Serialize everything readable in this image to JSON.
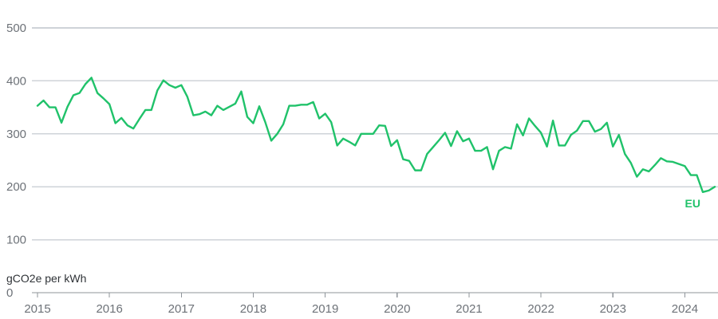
{
  "colors": {
    "series": "#20c26a",
    "grid": "#cfd3d8",
    "axis": "#8f949a",
    "tick_text": "#6d7278",
    "unit_text": "#2f3337"
  },
  "chart_data": {
    "type": "line",
    "ylabel": "gCO2e per kWh",
    "ylim": [
      0,
      500
    ],
    "y_ticks": [
      "0",
      "100",
      "200",
      "300",
      "400",
      "500"
    ],
    "x_ticks": [
      "2015",
      "2016",
      "2017",
      "2018",
      "2019",
      "2020",
      "2021",
      "2022",
      "2023",
      "2024"
    ],
    "xlim": [
      2015.0,
      2024.4167
    ],
    "grid": true,
    "series": [
      {
        "name": "EU",
        "x": [
          2015.0,
          2015.0833,
          2015.1667,
          2015.25,
          2015.3333,
          2015.4167,
          2015.5,
          2015.5833,
          2015.6667,
          2015.75,
          2015.8333,
          2015.9167,
          2016.0,
          2016.0833,
          2016.1667,
          2016.25,
          2016.3333,
          2016.4167,
          2016.5,
          2016.5833,
          2016.6667,
          2016.75,
          2016.8333,
          2016.9167,
          2017.0,
          2017.0833,
          2017.1667,
          2017.25,
          2017.3333,
          2017.4167,
          2017.5,
          2017.5833,
          2017.6667,
          2017.75,
          2017.8333,
          2017.9167,
          2018.0,
          2018.0833,
          2018.1667,
          2018.25,
          2018.3333,
          2018.4167,
          2018.5,
          2018.5833,
          2018.6667,
          2018.75,
          2018.8333,
          2018.9167,
          2019.0,
          2019.0833,
          2019.1667,
          2019.25,
          2019.3333,
          2019.4167,
          2019.5,
          2019.5833,
          2019.6667,
          2019.75,
          2019.8333,
          2019.9167,
          2020.0,
          2020.0833,
          2020.1667,
          2020.25,
          2020.3333,
          2020.4167,
          2020.5,
          2020.5833,
          2020.6667,
          2020.75,
          2020.8333,
          2020.9167,
          2021.0,
          2021.0833,
          2021.1667,
          2021.25,
          2021.3333,
          2021.4167,
          2021.5,
          2021.5833,
          2021.6667,
          2021.75,
          2021.8333,
          2021.9167,
          2022.0,
          2022.0833,
          2022.1667,
          2022.25,
          2022.3333,
          2022.4167,
          2022.5,
          2022.5833,
          2022.6667,
          2022.75,
          2022.8333,
          2022.9167,
          2023.0,
          2023.0833,
          2023.1667,
          2023.25,
          2023.3333,
          2023.4167,
          2023.5,
          2023.5833,
          2023.6667,
          2023.75,
          2023.8333,
          2023.9167,
          2024.0,
          2024.0833,
          2024.1667,
          2024.25,
          2024.3333,
          2024.4167
        ],
        "y": [
          353,
          363,
          350,
          350,
          321,
          351,
          373,
          377,
          394,
          406,
          377,
          367,
          356,
          320,
          330,
          316,
          310,
          328,
          345,
          345,
          382,
          401,
          392,
          387,
          392,
          370,
          335,
          337,
          342,
          335,
          353,
          345,
          351,
          357,
          380,
          332,
          320,
          352,
          322,
          287,
          300,
          318,
          353,
          353,
          355,
          355,
          360,
          329,
          338,
          322,
          278,
          291,
          285,
          278,
          300,
          300,
          300,
          316,
          315,
          277,
          288,
          252,
          249,
          231,
          231,
          262,
          275,
          288,
          302,
          277,
          305,
          286,
          291,
          268,
          268,
          275,
          233,
          268,
          275,
          272,
          318,
          297,
          329,
          315,
          302,
          276,
          325,
          278,
          278,
          298,
          306,
          324,
          324,
          304,
          309,
          321,
          276,
          298,
          262,
          245,
          219,
          233,
          229,
          241,
          254,
          248,
          247,
          243,
          239,
          222,
          222,
          190,
          193,
          200
        ]
      }
    ]
  }
}
